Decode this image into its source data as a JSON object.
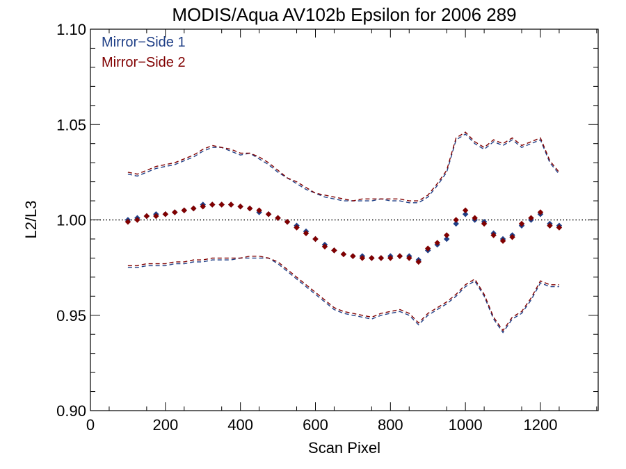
{
  "chart_data": {
    "type": "scatter",
    "title": "MODIS/Aqua AV102b Epsilon for 2006 289",
    "xlabel": "Scan Pixel",
    "ylabel": "L2/L3",
    "xlim": [
      0,
      1354
    ],
    "ylim": [
      0.9,
      1.1
    ],
    "xticks": [
      "0",
      "200",
      "400",
      "600",
      "800",
      "1000",
      "1200"
    ],
    "yticks": [
      "0.90",
      "0.95",
      "1.00",
      "1.05",
      "1.10"
    ],
    "reference_line": 1.0,
    "legend_position": "top-left",
    "colors": {
      "mirror_side_1": "#1f3f86",
      "mirror_side_2": "#800000"
    },
    "series": [
      {
        "name": "Mirror−Side 1",
        "kind": "points",
        "x": [
          100,
          125,
          150,
          175,
          200,
          225,
          250,
          275,
          300,
          325,
          350,
          375,
          400,
          425,
          450,
          475,
          500,
          525,
          550,
          575,
          600,
          625,
          650,
          675,
          700,
          725,
          750,
          775,
          800,
          825,
          850,
          875,
          900,
          925,
          950,
          975,
          1000,
          1025,
          1050,
          1075,
          1100,
          1125,
          1150,
          1175,
          1200,
          1225,
          1250
        ],
        "y": [
          1.0,
          1.001,
          1.002,
          1.003,
          1.003,
          1.004,
          1.005,
          1.006,
          1.008,
          1.008,
          1.008,
          1.008,
          1.007,
          1.006,
          1.004,
          1.003,
          1.001,
          0.999,
          0.997,
          0.994,
          0.99,
          0.987,
          0.984,
          0.982,
          0.981,
          0.981,
          0.98,
          0.98,
          0.981,
          0.981,
          0.981,
          0.979,
          0.984,
          0.987,
          0.99,
          0.998,
          1.003,
          1.0,
          0.999,
          0.993,
          0.99,
          0.992,
          0.997,
          1.0,
          1.003,
          0.998,
          0.997
        ]
      },
      {
        "name": "Mirror−Side 2",
        "kind": "points",
        "x": [
          100,
          125,
          150,
          175,
          200,
          225,
          250,
          275,
          300,
          325,
          350,
          375,
          400,
          425,
          450,
          475,
          500,
          525,
          550,
          575,
          600,
          625,
          650,
          675,
          700,
          725,
          750,
          775,
          800,
          825,
          850,
          875,
          900,
          925,
          950,
          975,
          1000,
          1025,
          1050,
          1075,
          1100,
          1125,
          1150,
          1175,
          1200,
          1225,
          1250
        ],
        "y": [
          0.999,
          1.0,
          1.002,
          1.002,
          1.003,
          1.004,
          1.005,
          1.006,
          1.007,
          1.008,
          1.008,
          1.008,
          1.007,
          1.006,
          1.005,
          1.003,
          1.001,
          0.999,
          0.996,
          0.993,
          0.99,
          0.986,
          0.984,
          0.982,
          0.981,
          0.98,
          0.98,
          0.98,
          0.98,
          0.981,
          0.98,
          0.978,
          0.985,
          0.988,
          0.992,
          1.0,
          1.005,
          1.001,
          0.998,
          0.992,
          0.989,
          0.991,
          0.998,
          1.001,
          1.004,
          0.997,
          0.996
        ]
      },
      {
        "name": "Mirror−Side 1 upper bound",
        "kind": "dashed",
        "x": [
          100,
          125,
          150,
          175,
          200,
          225,
          250,
          275,
          300,
          325,
          350,
          375,
          400,
          425,
          450,
          475,
          500,
          525,
          550,
          575,
          600,
          625,
          650,
          675,
          700,
          725,
          750,
          775,
          800,
          825,
          850,
          875,
          900,
          925,
          950,
          975,
          1000,
          1025,
          1050,
          1075,
          1100,
          1125,
          1150,
          1175,
          1200,
          1225,
          1250
        ],
        "y": [
          1.024,
          1.023,
          1.025,
          1.027,
          1.028,
          1.029,
          1.031,
          1.033,
          1.036,
          1.038,
          1.038,
          1.036,
          1.034,
          1.035,
          1.032,
          1.029,
          1.025,
          1.022,
          1.019,
          1.016,
          1.014,
          1.012,
          1.011,
          1.01,
          1.01,
          1.01,
          1.01,
          1.011,
          1.01,
          1.01,
          1.009,
          1.009,
          1.012,
          1.018,
          1.025,
          1.042,
          1.045,
          1.04,
          1.037,
          1.041,
          1.039,
          1.042,
          1.038,
          1.04,
          1.042,
          1.03,
          1.024
        ]
      },
      {
        "name": "Mirror−Side 2 upper bound",
        "kind": "dashed",
        "x": [
          100,
          125,
          150,
          175,
          200,
          225,
          250,
          275,
          300,
          325,
          350,
          375,
          400,
          425,
          450,
          475,
          500,
          525,
          550,
          575,
          600,
          625,
          650,
          675,
          700,
          725,
          750,
          775,
          800,
          825,
          850,
          875,
          900,
          925,
          950,
          975,
          1000,
          1025,
          1050,
          1075,
          1100,
          1125,
          1150,
          1175,
          1200,
          1225,
          1250
        ],
        "y": [
          1.025,
          1.024,
          1.026,
          1.028,
          1.029,
          1.03,
          1.032,
          1.034,
          1.037,
          1.039,
          1.038,
          1.037,
          1.035,
          1.035,
          1.033,
          1.03,
          1.026,
          1.022,
          1.02,
          1.017,
          1.014,
          1.013,
          1.012,
          1.011,
          1.01,
          1.011,
          1.011,
          1.011,
          1.011,
          1.011,
          1.01,
          1.01,
          1.013,
          1.019,
          1.026,
          1.043,
          1.046,
          1.041,
          1.038,
          1.042,
          1.04,
          1.043,
          1.039,
          1.041,
          1.043,
          1.031,
          1.025
        ]
      },
      {
        "name": "Mirror−Side 1 lower bound",
        "kind": "dashed",
        "x": [
          100,
          125,
          150,
          175,
          200,
          225,
          250,
          275,
          300,
          325,
          350,
          375,
          400,
          425,
          450,
          475,
          500,
          525,
          550,
          575,
          600,
          625,
          650,
          675,
          700,
          725,
          750,
          775,
          800,
          825,
          850,
          875,
          900,
          925,
          950,
          975,
          1000,
          1025,
          1050,
          1075,
          1100,
          1125,
          1150,
          1175,
          1200,
          1225,
          1250
        ],
        "y": [
          0.975,
          0.975,
          0.976,
          0.976,
          0.976,
          0.977,
          0.977,
          0.978,
          0.978,
          0.979,
          0.979,
          0.979,
          0.98,
          0.98,
          0.98,
          0.98,
          0.977,
          0.973,
          0.969,
          0.965,
          0.961,
          0.957,
          0.953,
          0.951,
          0.95,
          0.949,
          0.948,
          0.95,
          0.951,
          0.952,
          0.95,
          0.945,
          0.95,
          0.953,
          0.956,
          0.96,
          0.965,
          0.968,
          0.96,
          0.948,
          0.941,
          0.948,
          0.951,
          0.958,
          0.967,
          0.965,
          0.965
        ]
      },
      {
        "name": "Mirror−Side 2 lower bound",
        "kind": "dashed",
        "x": [
          100,
          125,
          150,
          175,
          200,
          225,
          250,
          275,
          300,
          325,
          350,
          375,
          400,
          425,
          450,
          475,
          500,
          525,
          550,
          575,
          600,
          625,
          650,
          675,
          700,
          725,
          750,
          775,
          800,
          825,
          850,
          875,
          900,
          925,
          950,
          975,
          1000,
          1025,
          1050,
          1075,
          1100,
          1125,
          1150,
          1175,
          1200,
          1225,
          1250
        ],
        "y": [
          0.976,
          0.976,
          0.977,
          0.977,
          0.977,
          0.978,
          0.978,
          0.979,
          0.979,
          0.98,
          0.98,
          0.98,
          0.98,
          0.981,
          0.981,
          0.98,
          0.978,
          0.974,
          0.97,
          0.966,
          0.962,
          0.958,
          0.954,
          0.952,
          0.951,
          0.95,
          0.949,
          0.951,
          0.952,
          0.953,
          0.951,
          0.946,
          0.951,
          0.954,
          0.957,
          0.961,
          0.966,
          0.969,
          0.961,
          0.949,
          0.942,
          0.949,
          0.952,
          0.959,
          0.968,
          0.966,
          0.966
        ]
      }
    ]
  }
}
